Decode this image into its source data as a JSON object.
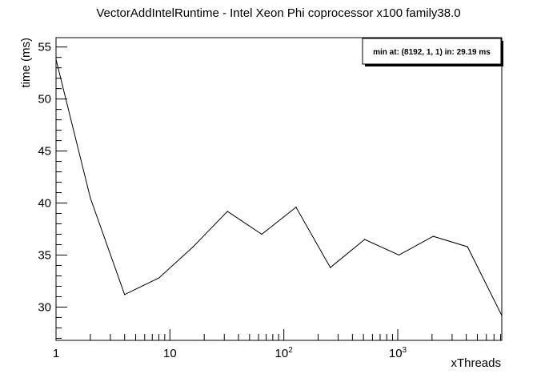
{
  "chart_data": {
    "type": "line",
    "title": "VectorAddIntelRuntime - Intel Xeon Phi coprocessor x100 family38.0",
    "xlabel": "xThreads",
    "ylabel": "time (ms)",
    "x_scale": "log",
    "xlim": [
      1,
      8192
    ],
    "ylim": [
      26.8,
      55.9
    ],
    "grid": false,
    "x_tick_labels": [
      {
        "value": 1,
        "base": "1",
        "exp": ""
      },
      {
        "value": 10,
        "base": "10",
        "exp": ""
      },
      {
        "value": 100,
        "base": "10",
        "exp": "2"
      },
      {
        "value": 1000,
        "base": "10",
        "exp": "3"
      }
    ],
    "y_tick_labels": [
      "30",
      "35",
      "40",
      "45",
      "50",
      "55"
    ],
    "series": [
      {
        "x": [
          1,
          2,
          4,
          8,
          16,
          32,
          64,
          128,
          256,
          512,
          1024,
          2048,
          4096,
          8192
        ],
        "y": [
          53.8,
          40.5,
          31.2,
          32.8,
          35.8,
          39.2,
          37.0,
          39.6,
          33.8,
          36.5,
          35.0,
          36.8,
          35.8,
          29.19
        ]
      }
    ],
    "annotation": "min at: (8192, 1, 1) in: 29.19 ms",
    "line_color": "#000000"
  }
}
